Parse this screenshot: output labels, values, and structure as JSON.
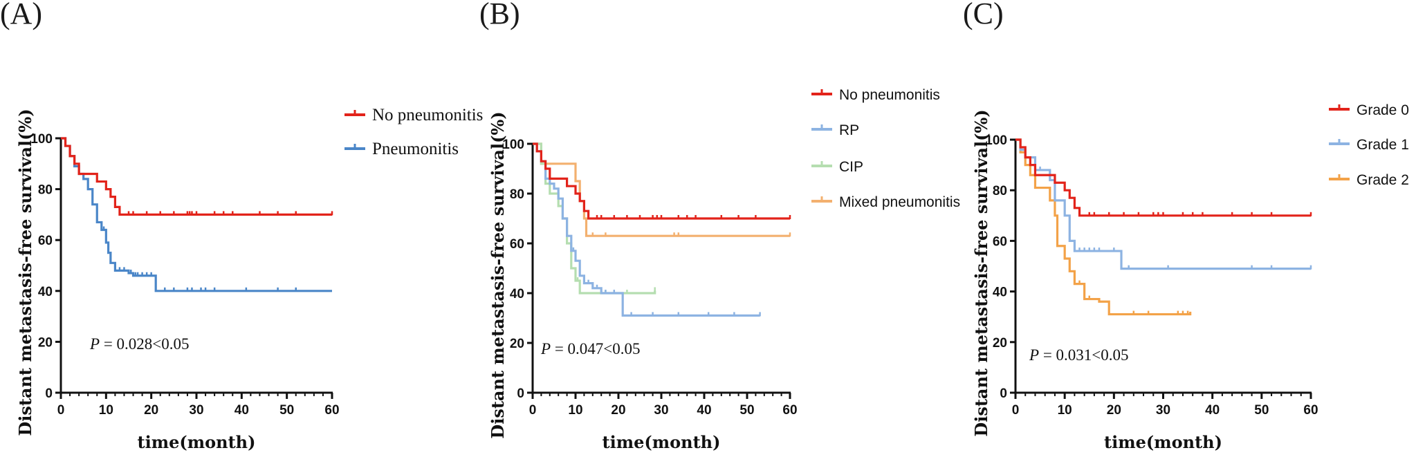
{
  "chart_data": [
    {
      "type": "line",
      "panel_label": "(A)",
      "ylabel": "Distant metastasis-free survival(%)",
      "xlabel": "time(month)",
      "xlim": [
        0,
        60
      ],
      "ylim": [
        0,
        100
      ],
      "x_ticks": [
        "0",
        "10",
        "20",
        "30",
        "40",
        "50",
        "60"
      ],
      "y_ticks": [
        "0",
        "20",
        "40",
        "60",
        "80",
        "100"
      ],
      "p_symbol": "P",
      "p_text": " = 0.028<0.05",
      "legend_style": "serif",
      "series": [
        {
          "name": "No pneumonitis",
          "color": "#e2231a",
          "steps": [
            [
              0,
              100
            ],
            [
              1,
              97
            ],
            [
              2,
              93
            ],
            [
              3,
              90
            ],
            [
              4,
              86
            ],
            [
              8,
              83
            ],
            [
              10,
              80
            ],
            [
              11,
              77
            ],
            [
              12,
              73
            ],
            [
              13,
              70
            ],
            [
              60,
              70
            ]
          ],
          "censor": [
            15,
            16,
            19,
            22,
            25,
            28,
            28.5,
            29,
            30,
            34,
            36,
            38,
            44,
            48,
            52,
            60
          ]
        },
        {
          "name": "Pneumonitis",
          "color": "#4a86c8",
          "steps": [
            [
              0,
              100
            ],
            [
              1,
              97
            ],
            [
              2,
              93
            ],
            [
              3,
              89
            ],
            [
              4,
              86
            ],
            [
              5,
              84
            ],
            [
              6,
              80
            ],
            [
              7,
              74
            ],
            [
              8,
              67
            ],
            [
              9,
              64
            ],
            [
              10,
              59
            ],
            [
              10.5,
              55
            ],
            [
              11,
              51
            ],
            [
              12,
              48
            ],
            [
              15,
              47
            ],
            [
              16,
              46
            ],
            [
              21,
              40
            ],
            [
              60,
              40
            ]
          ],
          "censor": [
            9.5,
            13,
            14,
            15.5,
            16.5,
            17,
            18,
            19,
            20,
            23,
            25,
            28,
            29,
            31,
            32,
            34,
            41,
            48,
            52
          ]
        }
      ]
    },
    {
      "type": "line",
      "panel_label": "(B)",
      "ylabel": "Distant metastasis-free survival(%)",
      "xlabel": "time(month)",
      "xlim": [
        0,
        60
      ],
      "ylim": [
        0,
        100
      ],
      "x_ticks": [
        "0",
        "10",
        "20",
        "30",
        "40",
        "50",
        "60"
      ],
      "y_ticks": [
        "0",
        "20",
        "40",
        "60",
        "80",
        "100"
      ],
      "p_symbol": "P",
      "p_text": " = 0.047<0.05",
      "legend_style": "sans",
      "series": [
        {
          "name": "No pneumonitis",
          "color": "#e2231a",
          "steps": [
            [
              0,
              100
            ],
            [
              1,
              97
            ],
            [
              2,
              93
            ],
            [
              3,
              90
            ],
            [
              4,
              86
            ],
            [
              8,
              83
            ],
            [
              10,
              80
            ],
            [
              11,
              77
            ],
            [
              12,
              73
            ],
            [
              13,
              70
            ],
            [
              60,
              70
            ]
          ],
          "censor": [
            15,
            16,
            19,
            22,
            25,
            28,
            29,
            30,
            34,
            36,
            38,
            44,
            48,
            52,
            60
          ]
        },
        {
          "name": "RP",
          "color": "#8db3e2",
          "steps": [
            [
              0,
              100
            ],
            [
              1,
              97
            ],
            [
              2,
              93
            ],
            [
              3,
              86
            ],
            [
              4,
              84
            ],
            [
              5,
              82
            ],
            [
              6,
              78
            ],
            [
              7,
              70
            ],
            [
              8,
              63
            ],
            [
              9,
              57
            ],
            [
              10,
              53
            ],
            [
              11,
              47
            ],
            [
              12,
              44
            ],
            [
              14,
              42
            ],
            [
              16,
              40
            ],
            [
              21,
              31
            ],
            [
              53,
              31
            ]
          ],
          "censor": [
            9.5,
            13,
            15,
            17,
            19,
            23,
            28,
            34,
            41,
            47,
            53
          ]
        },
        {
          "name": "CIP",
          "color": "#b5deb0",
          "steps": [
            [
              0,
              100
            ],
            [
              2,
              92
            ],
            [
              3,
              84
            ],
            [
              4,
              80
            ],
            [
              6,
              75
            ],
            [
              7,
              70
            ],
            [
              8,
              60
            ],
            [
              9,
              50
            ],
            [
              10,
              45
            ],
            [
              11,
              40
            ],
            [
              28,
              40
            ],
            [
              28.5,
              41
            ]
          ],
          "censor": [
            3,
            10.5,
            17,
            22,
            28.5
          ]
        },
        {
          "name": "Mixed pneumonitis",
          "color": "#f3b06f",
          "steps": [
            [
              0,
              100
            ],
            [
              2,
              92
            ],
            [
              9,
              92
            ],
            [
              10,
              85
            ],
            [
              11,
              77
            ],
            [
              12,
              70
            ],
            [
              12.5,
              63
            ],
            [
              60,
              63
            ]
          ],
          "censor": [
            3,
            12,
            14,
            17,
            33,
            34,
            60
          ]
        }
      ]
    },
    {
      "type": "line",
      "panel_label": "(C)",
      "ylabel": "Distant metastasis-free survival(%)",
      "xlabel": "time(month)",
      "xlim": [
        0,
        60
      ],
      "ylim": [
        0,
        100
      ],
      "x_ticks": [
        "0",
        "10",
        "20",
        "30",
        "40",
        "50",
        "60"
      ],
      "y_ticks": [
        "0",
        "20",
        "40",
        "60",
        "80",
        "100"
      ],
      "p_symbol": "P",
      "p_text": " = 0.031<0.05",
      "legend_style": "sans",
      "series": [
        {
          "name": "Grade 0",
          "color": "#e2231a",
          "steps": [
            [
              0,
              100
            ],
            [
              1,
              97
            ],
            [
              2,
              93
            ],
            [
              3,
              90
            ],
            [
              4,
              86
            ],
            [
              8,
              83
            ],
            [
              10,
              80
            ],
            [
              11,
              77
            ],
            [
              12,
              73
            ],
            [
              13,
              70
            ],
            [
              60,
              70
            ]
          ],
          "censor": [
            15,
            16,
            19,
            22,
            25,
            28,
            29,
            30,
            34,
            36,
            38,
            44,
            48,
            52,
            60
          ]
        },
        {
          "name": "Grade 1",
          "color": "#8db3e2",
          "steps": [
            [
              0,
              100
            ],
            [
              1,
              96
            ],
            [
              2,
              93
            ],
            [
              4,
              88
            ],
            [
              7,
              84
            ],
            [
              8,
              76
            ],
            [
              10,
              70
            ],
            [
              11,
              60
            ],
            [
              12,
              56
            ],
            [
              21,
              56
            ],
            [
              21.5,
              49
            ],
            [
              60,
              49
            ]
          ],
          "censor": [
            5,
            13,
            14,
            15,
            16,
            17,
            20,
            23,
            31,
            48,
            52,
            60
          ]
        },
        {
          "name": "Grade 2",
          "color": "#f3a248",
          "steps": [
            [
              0,
              100
            ],
            [
              1,
              95
            ],
            [
              2,
              90
            ],
            [
              3,
              86
            ],
            [
              4,
              81
            ],
            [
              7,
              76
            ],
            [
              8,
              70
            ],
            [
              8.5,
              58
            ],
            [
              10,
              53
            ],
            [
              11,
              48
            ],
            [
              12,
              43
            ],
            [
              14,
              37
            ],
            [
              17,
              36
            ],
            [
              19,
              31
            ],
            [
              35,
              31
            ],
            [
              35.5,
              32
            ]
          ],
          "censor": [
            2,
            10,
            13,
            15,
            17,
            24,
            27,
            33,
            34,
            35
          ]
        }
      ]
    }
  ]
}
